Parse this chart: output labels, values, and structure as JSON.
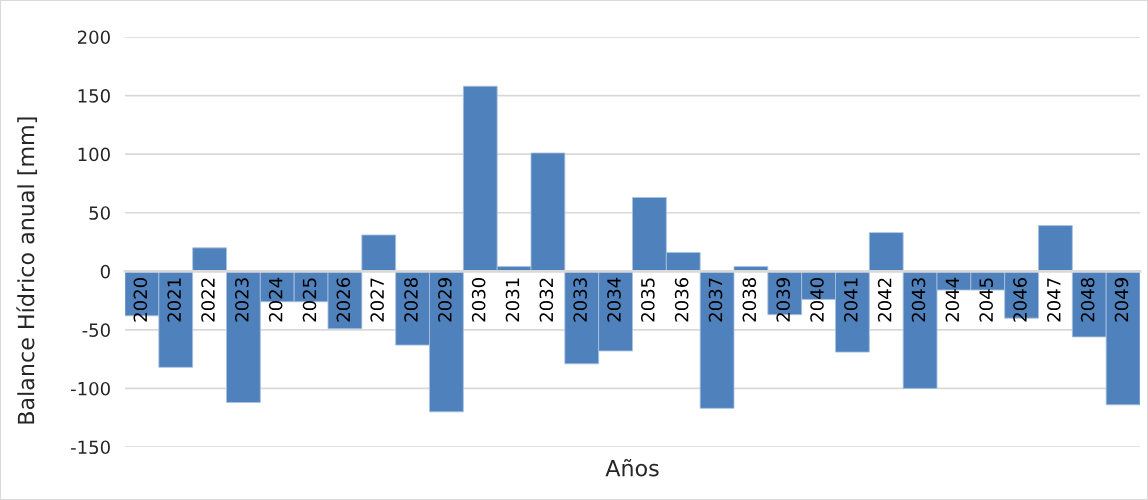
{
  "chart_data": {
    "type": "bar",
    "xlabel": "Años",
    "ylabel": "Balance Hídrico anual [mm]",
    "categories": [
      "2020",
      "2021",
      "2022",
      "2023",
      "2024",
      "2025",
      "2026",
      "2027",
      "2028",
      "2029",
      "2030",
      "2031",
      "2032",
      "2033",
      "2034",
      "2035",
      "2036",
      "2037",
      "2038",
      "2039",
      "2040",
      "2041",
      "2042",
      "2043",
      "2044",
      "2045",
      "2046",
      "2047",
      "2048",
      "2049"
    ],
    "values": [
      -38,
      -82,
      20,
      -112,
      -26,
      -26,
      -49,
      31,
      -63,
      -120,
      158,
      4,
      101,
      -79,
      -68,
      63,
      16,
      -117,
      4,
      -37,
      -24,
      -69,
      33,
      -100,
      -16,
      -16,
      -40,
      39,
      -56,
      -114
    ],
    "color": "#4f81bd",
    "ylim": [
      -150,
      200
    ],
    "yticks": [
      -150,
      -100,
      -50,
      0,
      50,
      100,
      150,
      200
    ],
    "grid": "y",
    "legend": false
  }
}
